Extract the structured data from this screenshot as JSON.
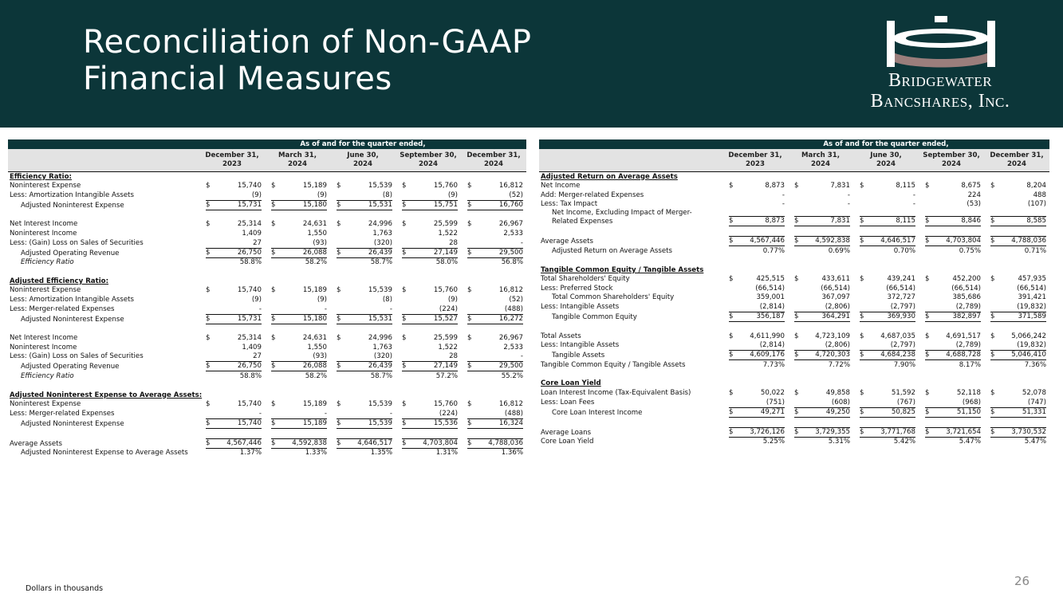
{
  "header": {
    "title_lines": [
      "Reconciliation of Non-GAAP",
      "Financial Measures"
    ],
    "logo_lines": [
      "Bridgewater",
      "Bancshares, Inc."
    ]
  },
  "tables": [
    {
      "heading": "As of and for the quarter ended,",
      "columns": [
        {
          "month": "December 31,",
          "year": "2023"
        },
        {
          "month": "March 31,",
          "year": "2024"
        },
        {
          "month": "June 30,",
          "year": "2024"
        },
        {
          "month": "September 30,",
          "year": "2024"
        },
        {
          "month": "December 31,",
          "year": "2024"
        }
      ],
      "sections": [
        {
          "title": "Efficiency Ratio:",
          "rows": [
            {
              "label": "Noninterest Expense",
              "currency": "$",
              "values": [
                "15,740",
                "15,189",
                "15,539",
                "15,760",
                "16,812"
              ]
            },
            {
              "label": "Less: Amortization Intangible Assets",
              "values": [
                "(9)",
                "(9)",
                "(8)",
                "(9)",
                "(52)"
              ]
            },
            {
              "label": "Adjusted Noninterest Expense",
              "currency": "$",
              "values": [
                "15,731",
                "15,180",
                "15,531",
                "15,751",
                "16,760"
              ]
            },
            {
              "label": "Net Interest Income",
              "currency": "$",
              "values": [
                "25,314",
                "24,631",
                "24,996",
                "25,599",
                "26,967"
              ]
            },
            {
              "label": "Noninterest Income",
              "values": [
                "1,409",
                "1,550",
                "1,763",
                "1,522",
                "2,533"
              ]
            },
            {
              "label": "Less: (Gain) Loss on Sales of Securities",
              "values": [
                "27",
                "(93)",
                "(320)",
                "28",
                "-"
              ]
            },
            {
              "label": "Adjusted Operating Revenue",
              "currency": "$",
              "values": [
                "26,750",
                "26,088",
                "26,439",
                "27,149",
                "29,500"
              ]
            },
            {
              "label": "Efficiency Ratio",
              "values": [
                "58.8%",
                "58.2%",
                "58.7%",
                "58.0%",
                "56.8%"
              ]
            }
          ]
        },
        {
          "title": "Adjusted Efficiency Ratio:",
          "rows": [
            {
              "label": "Noninterest Expense",
              "currency": "$",
              "values": [
                "15,740",
                "15,189",
                "15,539",
                "15,760",
                "16,812"
              ]
            },
            {
              "label": "Less: Amortization Intangible Assets",
              "values": [
                "(9)",
                "(9)",
                "(8)",
                "(9)",
                "(52)"
              ]
            },
            {
              "label": "Less: Merger-related Expenses",
              "values": [
                "-",
                "-",
                "-",
                "(224)",
                "(488)"
              ]
            },
            {
              "label": "Adjusted Noninterest Expense",
              "currency": "$",
              "values": [
                "15,731",
                "15,180",
                "15,531",
                "15,527",
                "16,272"
              ]
            },
            {
              "label": "Net Interest Income",
              "currency": "$",
              "values": [
                "25,314",
                "24,631",
                "24,996",
                "25,599",
                "26,967"
              ]
            },
            {
              "label": "Noninterest Income",
              "values": [
                "1,409",
                "1,550",
                "1,763",
                "1,522",
                "2,533"
              ]
            },
            {
              "label": "Less: (Gain) Loss on Sales of Securities",
              "values": [
                "27",
                "(93)",
                "(320)",
                "28",
                "-"
              ]
            },
            {
              "label": "Adjusted Operating Revenue",
              "currency": "$",
              "values": [
                "26,750",
                "26,088",
                "26,439",
                "27,149",
                "29,500"
              ]
            },
            {
              "label": "Efficiency Ratio",
              "values": [
                "58.8%",
                "58.2%",
                "58.7%",
                "57.2%",
                "55.2%"
              ]
            }
          ]
        },
        {
          "title": "Adjusted Noninterest Expense to Average Assets:",
          "rows": [
            {
              "label": "Noninterest Expense",
              "currency": "$",
              "values": [
                "15,740",
                "15,189",
                "15,539",
                "15,760",
                "16,812"
              ]
            },
            {
              "label": "Less: Merger-related Expenses",
              "values": [
                "-",
                "-",
                "-",
                "(224)",
                "(488)"
              ]
            },
            {
              "label": "Adjusted Noninterest Expense",
              "currency": "$",
              "values": [
                "15,740",
                "15,189",
                "15,539",
                "15,536",
                "16,324"
              ]
            },
            {
              "label": "Average Assets",
              "currency": "$",
              "values": [
                "4,567,446",
                "4,592,838",
                "4,646,517",
                "4,703,804",
                "4,788,036"
              ]
            },
            {
              "label": "Adjusted Noninterest Expense to Average Assets",
              "values": [
                "1.37%",
                "1.33%",
                "1.35%",
                "1.31%",
                "1.36%"
              ]
            }
          ]
        }
      ]
    },
    {
      "heading": "As of and for the quarter ended,",
      "columns": [
        {
          "month": "December 31,",
          "year": "2023"
        },
        {
          "month": "March 31,",
          "year": "2024"
        },
        {
          "month": "June 30,",
          "year": "2024"
        },
        {
          "month": "September 30,",
          "year": "2024"
        },
        {
          "month": "December 31,",
          "year": "2024"
        }
      ],
      "sections": [
        {
          "title": "Adjusted Return on Average Assets",
          "rows": [
            {
              "label": "Net Income",
              "currency": "$",
              "values": [
                "8,873",
                "7,831",
                "8,115",
                "8,675",
                "8,204"
              ]
            },
            {
              "label": "Add: Merger-related Expenses",
              "values": [
                "-",
                "-",
                "-",
                "224",
                "488"
              ]
            },
            {
              "label": "Less: Tax Impact",
              "values": [
                "-",
                "-",
                "-",
                "(53)",
                "(107)"
              ]
            },
            {
              "label": "Net Income, Excluding Impact of Merger-\nRelated Expenses",
              "currency": "$",
              "values": [
                "8,873",
                "7,831",
                "8,115",
                "8,846",
                "8,585"
              ]
            },
            {
              "label": "Average Assets",
              "currency": "$",
              "values": [
                "4,567,446",
                "4,592,838",
                "4,646,517",
                "4,703,804",
                "4,788,036"
              ]
            },
            {
              "label": "Adjusted Return on Average Assets",
              "values": [
                "0.77%",
                "0.69%",
                "0.70%",
                "0.75%",
                "0.71%"
              ]
            }
          ]
        },
        {
          "title": "Tangible Common Equity / Tangible Assets",
          "rows": [
            {
              "label": "Total Shareholders' Equity",
              "currency": "$",
              "values": [
                "425,515",
                "433,611",
                "439,241",
                "452,200",
                "457,935"
              ]
            },
            {
              "label": "Less: Preferred Stock",
              "values": [
                "(66,514)",
                "(66,514)",
                "(66,514)",
                "(66,514)",
                "(66,514)"
              ]
            },
            {
              "label": "Total Common Shareholders' Equity",
              "values": [
                "359,001",
                "367,097",
                "372,727",
                "385,686",
                "391,421"
              ]
            },
            {
              "label": "Less: Intangible Assets",
              "values": [
                "(2,814)",
                "(2,806)",
                "(2,797)",
                "(2,789)",
                "(19,832)"
              ]
            },
            {
              "label": "Tangible Common Equity",
              "currency": "$",
              "values": [
                "356,187",
                "364,291",
                "369,930",
                "382,897",
                "371,589"
              ]
            },
            {
              "label": "Total Assets",
              "currency": "$",
              "values": [
                "4,611,990",
                "4,723,109",
                "4,687,035",
                "4,691,517",
                "5,066,242"
              ]
            },
            {
              "label": "Less: Intangible Assets",
              "values": [
                "(2,814)",
                "(2,806)",
                "(2,797)",
                "(2,789)",
                "(19,832)"
              ]
            },
            {
              "label": "Tangible Assets",
              "currency": "$",
              "values": [
                "4,609,176",
                "4,720,303",
                "4,684,238",
                "4,688,728",
                "5,046,410"
              ]
            },
            {
              "label": "Tangible Common Equity / Tangible Assets",
              "values": [
                "7.73%",
                "7.72%",
                "7.90%",
                "8.17%",
                "7.36%"
              ]
            }
          ]
        },
        {
          "title": "Core Loan Yield",
          "rows": [
            {
              "label": "Loan Interest Income (Tax-Equivalent Basis)",
              "currency": "$",
              "values": [
                "50,022",
                "49,858",
                "51,592",
                "52,118",
                "52,078"
              ]
            },
            {
              "label": "Less: Loan Fees",
              "values": [
                "(751)",
                "(608)",
                "(767)",
                "(968)",
                "(747)"
              ]
            },
            {
              "label": "Core Loan Interest Income",
              "currency": "$",
              "values": [
                "49,271",
                "49,250",
                "50,825",
                "51,150",
                "51,331"
              ]
            },
            {
              "label": "Average Loans",
              "currency": "$",
              "values": [
                "3,726,126",
                "3,729,355",
                "3,771,768",
                "3,721,654",
                "3,730,532"
              ]
            },
            {
              "label": "Core Loan Yield",
              "values": [
                "5.25%",
                "5.31%",
                "5.42%",
                "5.47%",
                "5.47%"
              ]
            }
          ]
        }
      ]
    }
  ],
  "footer": {
    "note": "Dollars in thousands",
    "page": "26"
  }
}
